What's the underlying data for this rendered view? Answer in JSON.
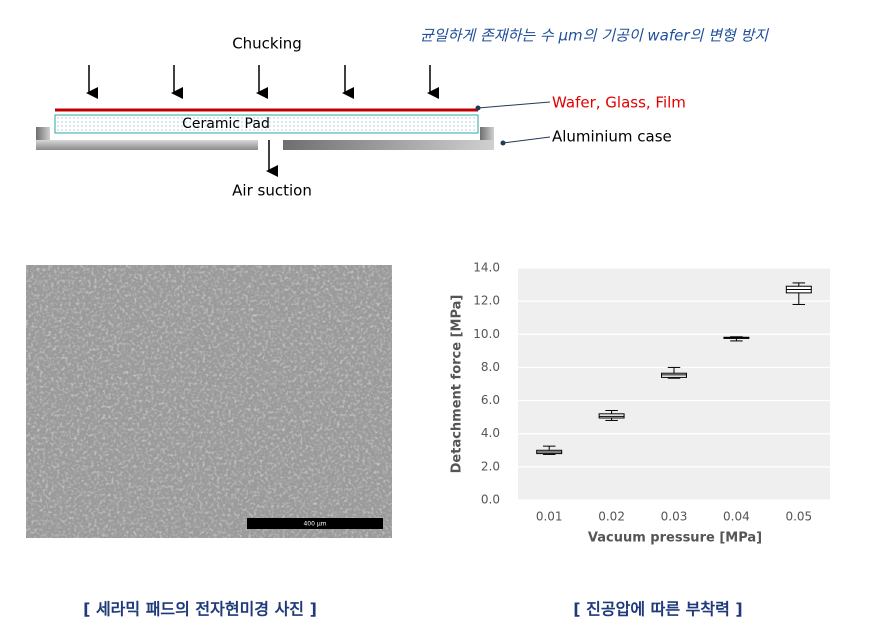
{
  "diagram": {
    "note": "균일하게 존재하는 수 μm의 기공이 wafer의 변형 방지",
    "chucking": "Chucking",
    "pad": "Ceramic Pad",
    "wafer": "Wafer, Glass, Film",
    "case": "Aluminium case",
    "suction": "Air suction"
  },
  "image": {
    "scale": "400 μm",
    "caption": "[ 세라믹 패드의 전자현미경 사진 ]"
  },
  "chart_caption": "[ 진공압에 따른 부착력 ]",
  "chart_data": {
    "type": "box",
    "x_label": "Vacuum pressure [MPa]",
    "y_label": "Detachment force [MPa]",
    "categories": [
      "0.01",
      "0.02",
      "0.03",
      "0.04",
      "0.05"
    ],
    "boxes": [
      {
        "min": 2.75,
        "q1": 2.8,
        "median": 2.9,
        "q3": 3.0,
        "max": 3.25
      },
      {
        "min": 4.8,
        "q1": 4.95,
        "median": 5.05,
        "q3": 5.2,
        "max": 5.4
      },
      {
        "min": 7.35,
        "q1": 7.4,
        "median": 7.55,
        "q3": 7.65,
        "max": 8.0
      },
      {
        "min": 9.6,
        "q1": 9.75,
        "median": 9.78,
        "q3": 9.82,
        "max": 9.85
      },
      {
        "min": 11.8,
        "q1": 12.5,
        "median": 12.7,
        "q3": 12.9,
        "max": 13.1
      }
    ],
    "color": "#000000",
    "ylim": [
      0,
      14
    ],
    "yticks": [
      {
        "value": 0,
        "label": "0.0"
      },
      {
        "value": 2,
        "label": "2.0"
      },
      {
        "value": 4,
        "label": "4.0"
      },
      {
        "value": 6,
        "label": "6.0"
      },
      {
        "value": 8,
        "label": "8.0"
      },
      {
        "value": 10,
        "label": "10.0"
      },
      {
        "value": 12,
        "label": "12.0"
      },
      {
        "value": 14,
        "label": "14.0"
      }
    ],
    "grid": true
  }
}
